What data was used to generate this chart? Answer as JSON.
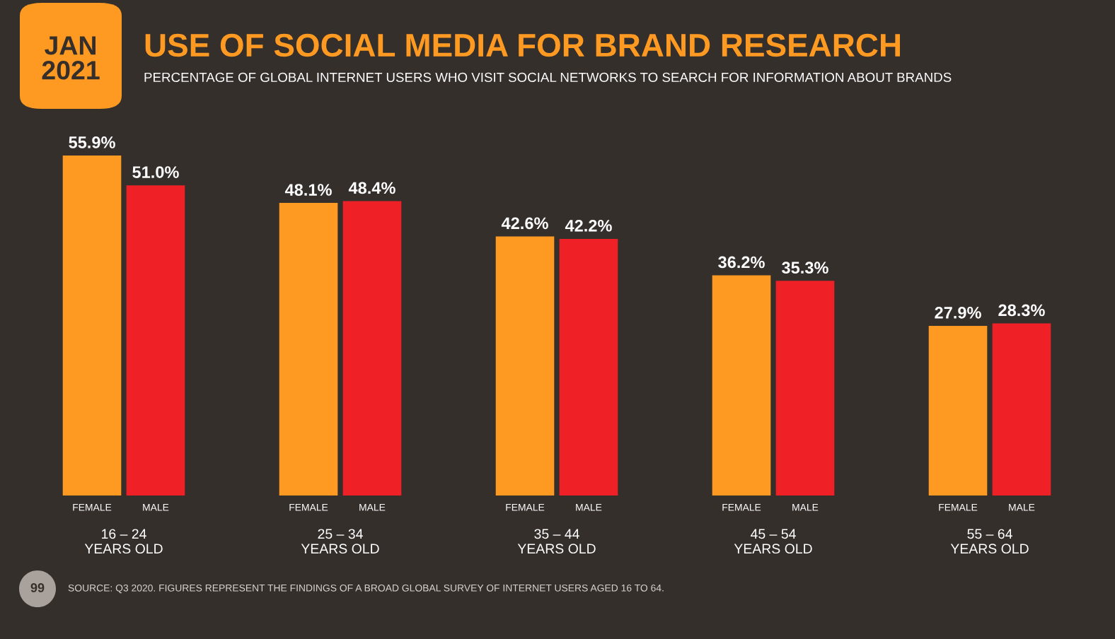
{
  "chart_data": {
    "type": "bar",
    "title": "USE OF SOCIAL MEDIA FOR BRAND RESEARCH",
    "subtitle": "PERCENTAGE OF GLOBAL INTERNET USERS WHO VISIT SOCIAL NETWORKS TO SEARCH FOR INFORMATION ABOUT BRANDS",
    "categories": [
      "16 – 24\nYEARS OLD",
      "25 – 34\nYEARS OLD",
      "35 – 44\nYEARS OLD",
      "45 – 54\nYEARS OLD",
      "55 – 64\nYEARS OLD"
    ],
    "series": [
      {
        "name": "FEMALE",
        "color": "#fe9a22",
        "values": [
          55.9,
          48.1,
          42.6,
          36.2,
          27.9
        ],
        "value_labels": [
          "55.9%",
          "48.1%",
          "42.6%",
          "36.2%",
          "27.9%"
        ]
      },
      {
        "name": "MALE",
        "color": "#f02126",
        "values": [
          51.0,
          48.4,
          42.2,
          35.3,
          28.3
        ],
        "value_labels": [
          "51.0%",
          "48.4%",
          "42.2%",
          "35.3%",
          "28.3%"
        ]
      }
    ],
    "legend": false,
    "annotations": [
      "JAN\n2021",
      "99",
      "SOURCE: Q3 2020. FIGURES REPRESENT THE FINDINGS OF A BROAD GLOBAL SURVEY OF INTERNET USERS AGED 16 TO 64."
    ]
  }
}
